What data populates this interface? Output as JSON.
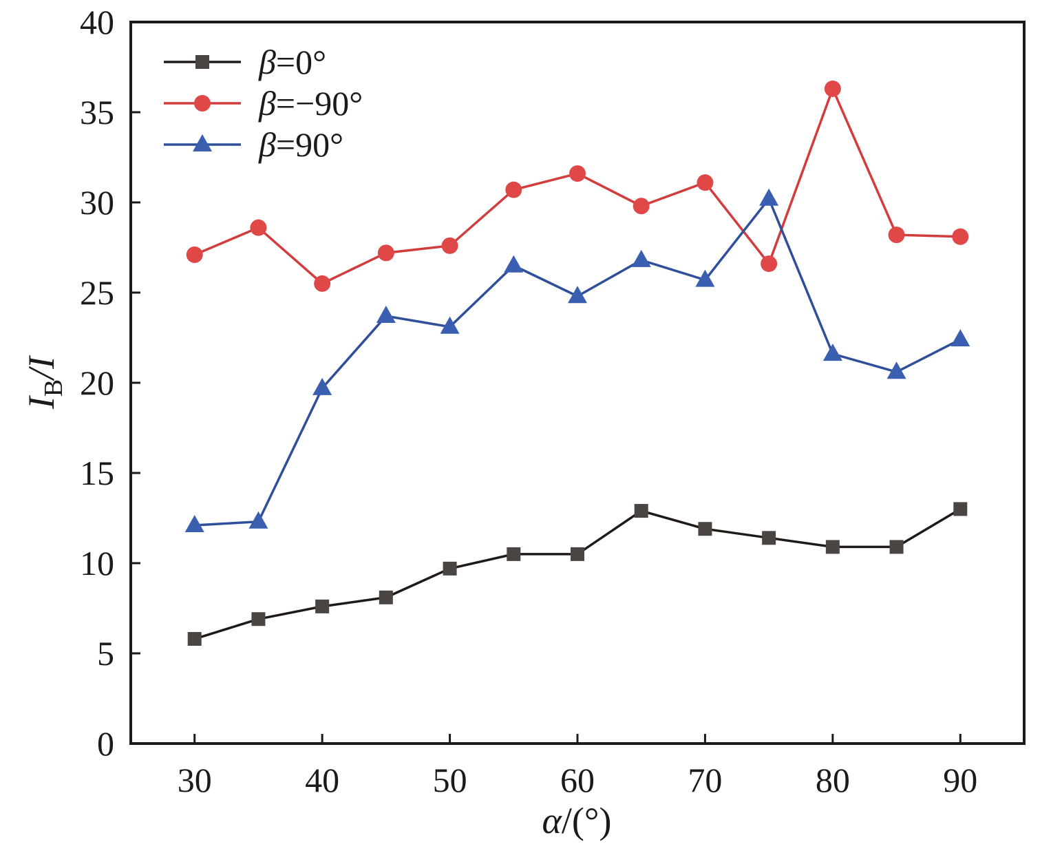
{
  "chart_data": {
    "type": "line",
    "title": "",
    "xlabel": {
      "symbol": "α",
      "unit": "/(°)"
    },
    "ylabel": {
      "symbol": "I",
      "subscript": "B",
      "rest": "/I"
    },
    "x": [
      30,
      35,
      40,
      45,
      50,
      55,
      60,
      65,
      70,
      75,
      80,
      85,
      90
    ],
    "xlim": [
      25,
      95
    ],
    "ylim": [
      0,
      40
    ],
    "xticks": [
      30,
      40,
      50,
      60,
      70,
      80,
      90
    ],
    "yticks": [
      0,
      5,
      10,
      15,
      20,
      25,
      30,
      35,
      40
    ],
    "grid": false,
    "legend_position": "top-left",
    "series": [
      {
        "name": "β=0°",
        "name_symbol": "β",
        "name_value": "=0°",
        "marker": "square",
        "color": "#1f1a17",
        "marker_color": "#4a4542",
        "values": [
          5.8,
          6.9,
          7.6,
          8.1,
          9.7,
          10.5,
          10.5,
          12.9,
          11.9,
          11.4,
          10.9,
          10.9,
          13.0
        ]
      },
      {
        "name": "β=−90°",
        "name_symbol": "β",
        "name_value": "=−90°",
        "marker": "circle",
        "color": "#d23c3c",
        "marker_color": "#e04848",
        "values": [
          27.1,
          28.6,
          25.5,
          27.2,
          27.6,
          30.7,
          31.6,
          29.8,
          31.1,
          26.6,
          36.3,
          28.2,
          28.1
        ]
      },
      {
        "name": "β=90°",
        "name_symbol": "β",
        "name_value": "=90°",
        "marker": "triangle",
        "color": "#2f4f9a",
        "marker_color": "#3a5fb0",
        "values": [
          12.1,
          12.3,
          19.7,
          23.7,
          23.1,
          26.5,
          24.8,
          26.8,
          25.7,
          30.2,
          21.6,
          20.6,
          22.4
        ]
      }
    ]
  }
}
